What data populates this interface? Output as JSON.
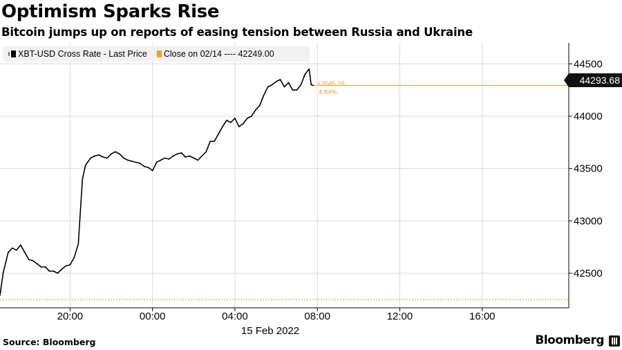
{
  "title": "Optimism Sparks Rise",
  "subtitle": "Bitcoin jumps up on reports of easing tension between Russia and Ukraine",
  "legend": [
    {
      "label": "XBT-USD Cross Rate - Last Price",
      "color": "#000000",
      "icon": "black-square-swatch"
    },
    {
      "label": "Close on 02/14 ---- 42249.00",
      "color": "#f0a030",
      "icon": "orange-square-swatch"
    }
  ],
  "last_price_label": "44293.68",
  "change_label": "+2045.26",
  "change_pct_label": "4.84%",
  "source": "Source: Bloomberg",
  "brand": "Bloomberg",
  "colors": {
    "price_line": "#000000",
    "close_line": "#f0a030",
    "grid": "#d9d9d9"
  },
  "chart_data": {
    "type": "line",
    "title": "Optimism Sparks Rise",
    "subtitle": "Bitcoin jumps up on reports of easing tension between Russia and Ukraine",
    "x_tick_labels": [
      "20:00",
      "00:00",
      "04:00",
      "08:00",
      "12:00",
      "16:00"
    ],
    "x_tick_hours": [
      20,
      24,
      28,
      32,
      36,
      40
    ],
    "x_sublabel": "15 Feb 2022",
    "y_ticks": [
      42500,
      43000,
      43500,
      44000,
      44500
    ],
    "ylim": [
      42170,
      44700
    ],
    "xlim_hours": [
      16.6,
      44.2
    ],
    "grid": true,
    "y_axis_position": "right",
    "legend_position": "top-left",
    "reference_line": {
      "name": "Close on 02/14",
      "value": 42249.0
    },
    "last_value": 44293.68,
    "change": 2045.26,
    "change_pct": 4.84,
    "series": [
      {
        "name": "XBT-USD Cross Rate - Last Price",
        "x_hours": [
          16.6,
          16.75,
          16.9,
          17.0,
          17.2,
          17.4,
          17.6,
          17.8,
          18.0,
          18.2,
          18.4,
          18.6,
          18.8,
          19.0,
          19.2,
          19.4,
          19.6,
          19.8,
          20.0,
          20.2,
          20.4,
          20.6,
          20.75,
          20.85,
          21.0,
          21.2,
          21.4,
          21.6,
          21.8,
          22.0,
          22.2,
          22.4,
          22.6,
          22.8,
          23.0,
          23.2,
          23.4,
          23.6,
          23.8,
          24.0,
          24.2,
          24.4,
          24.6,
          24.8,
          25.0,
          25.2,
          25.4,
          25.6,
          25.8,
          26.0,
          26.2,
          26.4,
          26.6,
          26.8,
          27.0,
          27.2,
          27.4,
          27.6,
          27.8,
          28.0,
          28.2,
          28.4,
          28.6,
          28.8,
          29.0,
          29.2,
          29.4,
          29.6,
          29.8,
          30.0,
          30.2,
          30.4,
          30.6,
          30.8,
          31.0,
          31.2,
          31.4,
          31.6,
          31.7,
          31.8
        ],
        "values": [
          42290,
          42500,
          42620,
          42700,
          42740,
          42720,
          42770,
          42700,
          42630,
          42620,
          42590,
          42560,
          42560,
          42520,
          42520,
          42500,
          42540,
          42570,
          42580,
          42650,
          42780,
          43400,
          43530,
          43560,
          43600,
          43620,
          43630,
          43610,
          43600,
          43640,
          43660,
          43640,
          43600,
          43580,
          43570,
          43560,
          43550,
          43520,
          43510,
          43480,
          43560,
          43580,
          43600,
          43590,
          43620,
          43640,
          43650,
          43610,
          43620,
          43600,
          43580,
          43620,
          43660,
          43760,
          43760,
          43830,
          43900,
          43960,
          43940,
          43980,
          43900,
          43930,
          43980,
          44000,
          44060,
          44100,
          44200,
          44280,
          44300,
          44330,
          44350,
          44280,
          44320,
          44250,
          44250,
          44300,
          44400,
          44450,
          44300,
          44293.68
        ]
      }
    ]
  }
}
